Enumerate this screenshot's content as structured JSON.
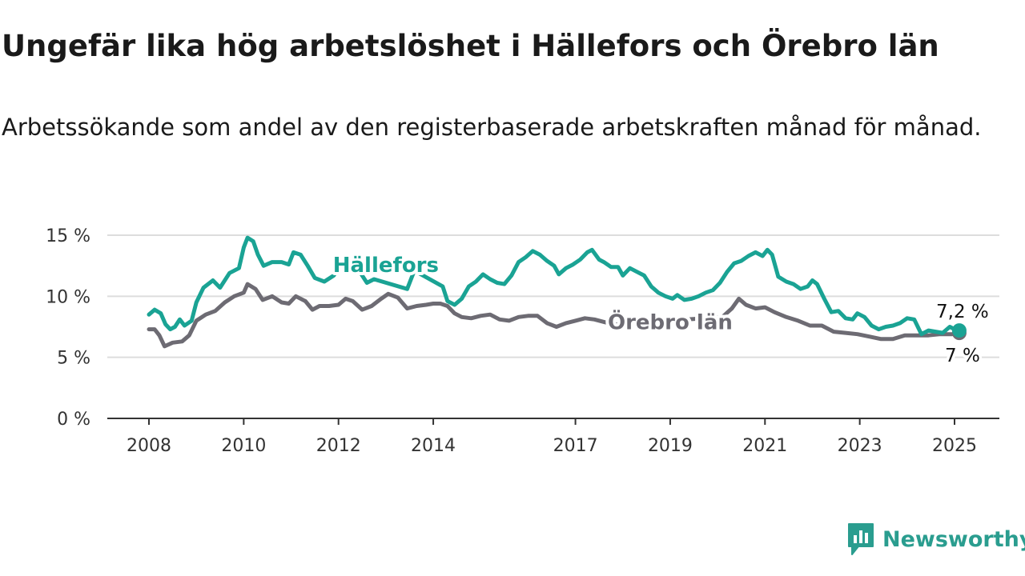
{
  "title": "Ungefär lika hög arbetslöshet i Hällefors och Örebro län",
  "subtitle": "Arbetssökande som andel av den registerbaserade arbetskraften månad för månad.",
  "brand": "Newsworthy",
  "colors": {
    "hallefors": "#1aa394",
    "orebro": "#6d6b73",
    "grid": "#dddddd",
    "axis": "#333333",
    "brand": "#2a9d8f"
  },
  "chart_data": {
    "type": "line",
    "ylim": [
      0,
      15
    ],
    "xlim": [
      2008,
      2025.25
    ],
    "y_ticks": [
      {
        "value": 0,
        "label": "0 %"
      },
      {
        "value": 5,
        "label": "5 %"
      },
      {
        "value": 10,
        "label": "10 %"
      },
      {
        "value": 15,
        "label": "15 %"
      }
    ],
    "x_ticks": [
      {
        "value": 2008,
        "label": "2008"
      },
      {
        "value": 2010,
        "label": "2010"
      },
      {
        "value": 2012,
        "label": "2012"
      },
      {
        "value": 2014,
        "label": "2014"
      },
      {
        "value": 2017,
        "label": "2017"
      },
      {
        "value": 2019,
        "label": "2019"
      },
      {
        "value": 2021,
        "label": "2021"
      },
      {
        "value": 2023,
        "label": "2023"
      },
      {
        "value": 2025,
        "label": "2025"
      }
    ],
    "series": [
      {
        "name": "Hällefors",
        "end_label": "7,2 %",
        "points": [
          [
            2008.0,
            8.5
          ],
          [
            2008.12,
            8.9
          ],
          [
            2008.25,
            8.6
          ],
          [
            2008.35,
            7.7
          ],
          [
            2008.45,
            7.3
          ],
          [
            2008.55,
            7.5
          ],
          [
            2008.65,
            8.1
          ],
          [
            2008.75,
            7.6
          ],
          [
            2008.9,
            8.0
          ],
          [
            2009.0,
            9.5
          ],
          [
            2009.15,
            10.7
          ],
          [
            2009.35,
            11.3
          ],
          [
            2009.5,
            10.7
          ],
          [
            2009.7,
            11.9
          ],
          [
            2009.9,
            12.3
          ],
          [
            2010.0,
            14.0
          ],
          [
            2010.08,
            14.8
          ],
          [
            2010.2,
            14.5
          ],
          [
            2010.3,
            13.4
          ],
          [
            2010.42,
            12.5
          ],
          [
            2010.6,
            12.8
          ],
          [
            2010.8,
            12.8
          ],
          [
            2010.95,
            12.6
          ],
          [
            2011.05,
            13.6
          ],
          [
            2011.2,
            13.4
          ],
          [
            2011.35,
            12.5
          ],
          [
            2011.5,
            11.5
          ],
          [
            2011.7,
            11.2
          ],
          [
            2011.9,
            11.7
          ],
          [
            2012.0,
            12.3
          ],
          [
            2012.15,
            13.3
          ],
          [
            2012.3,
            13.1
          ],
          [
            2012.45,
            12.0
          ],
          [
            2012.6,
            11.1
          ],
          [
            2012.75,
            11.4
          ],
          [
            2013.45,
            10.6
          ],
          [
            2013.6,
            12.1
          ],
          [
            2014.2,
            10.8
          ],
          [
            2014.3,
            9.6
          ],
          [
            2014.45,
            9.3
          ],
          [
            2014.6,
            9.8
          ],
          [
            2014.75,
            10.8
          ],
          [
            2014.9,
            11.2
          ],
          [
            2015.05,
            11.8
          ],
          [
            2015.2,
            11.4
          ],
          [
            2015.35,
            11.1
          ],
          [
            2015.5,
            11.0
          ],
          [
            2015.65,
            11.7
          ],
          [
            2015.8,
            12.8
          ],
          [
            2015.95,
            13.2
          ],
          [
            2016.1,
            13.7
          ],
          [
            2016.25,
            13.4
          ],
          [
            2016.4,
            12.9
          ],
          [
            2016.55,
            12.5
          ],
          [
            2016.65,
            11.8
          ],
          [
            2016.8,
            12.3
          ],
          [
            2016.95,
            12.6
          ],
          [
            2017.1,
            13.0
          ],
          [
            2017.25,
            13.6
          ],
          [
            2017.35,
            13.8
          ],
          [
            2017.5,
            13.0
          ],
          [
            2017.6,
            12.8
          ],
          [
            2017.75,
            12.4
          ],
          [
            2017.9,
            12.4
          ],
          [
            2018.0,
            11.7
          ],
          [
            2018.15,
            12.3
          ],
          [
            2018.3,
            12.0
          ],
          [
            2018.45,
            11.7
          ],
          [
            2018.6,
            10.8
          ],
          [
            2018.75,
            10.3
          ],
          [
            2018.9,
            10.0
          ],
          [
            2019.05,
            9.8
          ],
          [
            2019.15,
            10.1
          ],
          [
            2019.3,
            9.7
          ],
          [
            2019.45,
            9.8
          ],
          [
            2019.6,
            10.0
          ],
          [
            2019.75,
            10.3
          ],
          [
            2019.9,
            10.5
          ],
          [
            2020.05,
            11.1
          ],
          [
            2020.2,
            12.0
          ],
          [
            2020.35,
            12.7
          ],
          [
            2020.5,
            12.9
          ],
          [
            2020.65,
            13.3
          ],
          [
            2020.8,
            13.6
          ],
          [
            2020.95,
            13.3
          ],
          [
            2021.05,
            13.8
          ],
          [
            2021.15,
            13.4
          ],
          [
            2021.28,
            11.6
          ],
          [
            2021.45,
            11.2
          ],
          [
            2021.6,
            11.0
          ],
          [
            2021.75,
            10.6
          ],
          [
            2021.9,
            10.8
          ],
          [
            2022.0,
            11.3
          ],
          [
            2022.1,
            11.0
          ],
          [
            2022.25,
            9.8
          ],
          [
            2022.4,
            8.7
          ],
          [
            2022.55,
            8.8
          ],
          [
            2022.7,
            8.2
          ],
          [
            2022.85,
            8.1
          ],
          [
            2022.95,
            8.6
          ],
          [
            2023.1,
            8.3
          ],
          [
            2023.25,
            7.6
          ],
          [
            2023.4,
            7.3
          ],
          [
            2023.55,
            7.5
          ],
          [
            2023.7,
            7.6
          ],
          [
            2023.85,
            7.8
          ],
          [
            2024.0,
            8.2
          ],
          [
            2024.15,
            8.1
          ],
          [
            2024.3,
            6.9
          ],
          [
            2024.45,
            7.2
          ],
          [
            2024.6,
            7.1
          ],
          [
            2024.75,
            7.0
          ],
          [
            2024.9,
            7.5
          ],
          [
            2025.0,
            7.3
          ],
          [
            2025.1,
            7.2
          ]
        ]
      },
      {
        "name": "Örebro län",
        "end_label": "7 %",
        "points": [
          [
            2008.0,
            7.3
          ],
          [
            2008.12,
            7.3
          ],
          [
            2008.22,
            6.8
          ],
          [
            2008.33,
            5.9
          ],
          [
            2008.5,
            6.2
          ],
          [
            2008.7,
            6.3
          ],
          [
            2008.85,
            6.8
          ],
          [
            2009.0,
            8.0
          ],
          [
            2009.2,
            8.5
          ],
          [
            2009.4,
            8.8
          ],
          [
            2009.6,
            9.5
          ],
          [
            2009.8,
            10.0
          ],
          [
            2010.0,
            10.3
          ],
          [
            2010.08,
            11.0
          ],
          [
            2010.25,
            10.6
          ],
          [
            2010.4,
            9.7
          ],
          [
            2010.6,
            10.0
          ],
          [
            2010.8,
            9.5
          ],
          [
            2010.95,
            9.4
          ],
          [
            2011.1,
            10.0
          ],
          [
            2011.3,
            9.6
          ],
          [
            2011.45,
            8.9
          ],
          [
            2011.6,
            9.2
          ],
          [
            2011.8,
            9.2
          ],
          [
            2012.0,
            9.3
          ],
          [
            2012.15,
            9.8
          ],
          [
            2012.3,
            9.6
          ],
          [
            2012.5,
            8.9
          ],
          [
            2012.7,
            9.2
          ],
          [
            2012.9,
            9.8
          ],
          [
            2013.05,
            10.2
          ],
          [
            2013.25,
            9.9
          ],
          [
            2013.45,
            9.0
          ],
          [
            2013.65,
            9.2
          ],
          [
            2013.85,
            9.3
          ],
          [
            2014.0,
            9.4
          ],
          [
            2014.15,
            9.4
          ],
          [
            2014.3,
            9.2
          ],
          [
            2014.45,
            8.6
          ],
          [
            2014.6,
            8.3
          ],
          [
            2014.8,
            8.2
          ],
          [
            2015.0,
            8.4
          ],
          [
            2015.2,
            8.5
          ],
          [
            2015.4,
            8.1
          ],
          [
            2015.6,
            8.0
          ],
          [
            2015.8,
            8.3
          ],
          [
            2016.0,
            8.4
          ],
          [
            2016.2,
            8.4
          ],
          [
            2016.4,
            7.8
          ],
          [
            2016.6,
            7.5
          ],
          [
            2016.8,
            7.8
          ],
          [
            2017.0,
            8.0
          ],
          [
            2017.2,
            8.2
          ],
          [
            2017.4,
            8.1
          ],
          [
            2017.6,
            7.9
          ],
          [
            2017.8,
            7.7
          ],
          [
            2018.0,
            7.7
          ],
          [
            2018.2,
            7.8
          ],
          [
            2020.1,
            8.3
          ],
          [
            2020.3,
            9.0
          ],
          [
            2020.45,
            9.8
          ],
          [
            2020.6,
            9.3
          ],
          [
            2020.8,
            9.0
          ],
          [
            2021.0,
            9.1
          ],
          [
            2021.2,
            8.7
          ],
          [
            2021.45,
            8.3
          ],
          [
            2021.7,
            8.0
          ],
          [
            2021.95,
            7.6
          ],
          [
            2022.2,
            7.6
          ],
          [
            2022.45,
            7.1
          ],
          [
            2022.7,
            7.0
          ],
          [
            2022.95,
            6.9
          ],
          [
            2023.2,
            6.7
          ],
          [
            2023.45,
            6.5
          ],
          [
            2023.7,
            6.5
          ],
          [
            2023.95,
            6.8
          ],
          [
            2024.2,
            6.8
          ],
          [
            2024.45,
            6.8
          ],
          [
            2024.7,
            6.9
          ],
          [
            2024.95,
            6.9
          ],
          [
            2025.1,
            7.0
          ]
        ]
      }
    ],
    "annotations": [
      {
        "text": "Hällefors",
        "x": 2013.0,
        "y": 12.0,
        "series": 0
      },
      {
        "text": "Örebro län",
        "x": 2019.0,
        "y": 7.3,
        "series": 1
      }
    ],
    "grid": true,
    "legend": "none"
  }
}
